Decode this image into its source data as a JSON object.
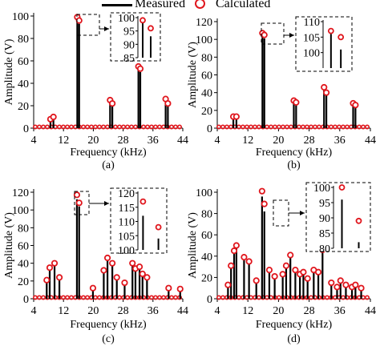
{
  "legend": {
    "measured_label": "Measured",
    "calculated_label": "Calculated"
  },
  "colors": {
    "measured": "#000000",
    "calculated": "#e0161d",
    "axis": "#000000"
  },
  "chart_data": [
    {
      "type": "line",
      "panel_label": "(a)",
      "xlabel": "Frequency (kHz)",
      "ylabel": "Amplitude (V)",
      "xlim": [
        4,
        44
      ],
      "ylim": [
        0,
        100
      ],
      "xticks": [
        4,
        12,
        20,
        28,
        36,
        44
      ],
      "yticks": [
        0,
        20,
        40,
        60,
        80,
        100
      ],
      "series": [
        {
          "name": "Measured",
          "kind": "spikes",
          "x": [
            8.5,
            9.3,
            15.7,
            16.2,
            24.5,
            25.1,
            32.1,
            32.6,
            39.4,
            40.0
          ],
          "y": [
            8,
            10,
            98,
            93,
            24,
            20,
            54,
            50,
            24,
            20
          ]
        },
        {
          "name": "Calculated",
          "kind": "markers",
          "x": [
            8.5,
            9.3,
            15.7,
            16.2,
            24.5,
            25.1,
            32.1,
            32.6,
            39.4,
            40.0
          ],
          "y": [
            8,
            10,
            99,
            96,
            25,
            22,
            55,
            53,
            26,
            22
          ]
        }
      ],
      "inset": {
        "xlim": [
          15.4,
          16.6
        ],
        "ylim": [
          85,
          100
        ],
        "yticks": [
          85,
          90,
          95,
          100
        ]
      }
    },
    {
      "type": "line",
      "panel_label": "(b)",
      "xlabel": "Frequency (kHz)",
      "ylabel": "Amplitude (V)",
      "xlim": [
        4,
        44
      ],
      "ylim": [
        0,
        120
      ],
      "xticks": [
        4,
        12,
        20,
        28,
        36,
        44
      ],
      "yticks": [
        0,
        20,
        40,
        60,
        80,
        100,
        120
      ],
      "series": [
        {
          "name": "Measured",
          "kind": "spikes",
          "x": [
            8.2,
            9.0,
            15.8,
            16.3,
            24.0,
            24.6,
            31.9,
            32.5,
            39.5,
            40.1
          ],
          "y": [
            12,
            12,
            106,
            101,
            30,
            28,
            44,
            38,
            27,
            25
          ]
        },
        {
          "name": "Calculated",
          "kind": "markers",
          "x": [
            8.2,
            9.0,
            15.8,
            16.3,
            24.0,
            24.6,
            31.9,
            32.5,
            39.5,
            40.1
          ],
          "y": [
            13,
            13,
            107,
            105,
            31,
            29,
            46,
            40,
            28,
            26
          ]
        }
      ],
      "inset": {
        "xlim": [
          15.4,
          16.7
        ],
        "ylim": [
          95,
          110
        ],
        "yticks": [
          100,
          105,
          110
        ]
      }
    },
    {
      "type": "line",
      "panel_label": "(c)",
      "xlabel": "Frequency (kHz)",
      "ylabel": "Amplitude (V)",
      "xlim": [
        4,
        44
      ],
      "ylim": [
        0,
        120
      ],
      "xticks": [
        4,
        12,
        20,
        28,
        36,
        44
      ],
      "yticks": [
        0,
        20,
        40,
        60,
        80,
        100,
        120
      ],
      "series": [
        {
          "name": "Measured",
          "kind": "spikes",
          "x": [
            7.5,
            8.3,
            9.6,
            10.9,
            15.6,
            16.2,
            19.9,
            22.8,
            23.8,
            25.1,
            26.3,
            28.4,
            30.5,
            31.3,
            32.4,
            33.2,
            34.4,
            40.2,
            43.3
          ],
          "y": [
            19,
            33,
            38,
            22,
            112,
            104,
            10,
            30,
            44,
            38,
            22,
            16,
            38,
            32,
            34,
            26,
            22,
            10,
            9
          ]
        },
        {
          "name": "Calculated",
          "kind": "markers",
          "x": [
            7.5,
            8.3,
            9.6,
            10.9,
            15.6,
            16.2,
            19.9,
            22.8,
            23.8,
            25.1,
            26.3,
            28.4,
            30.5,
            31.3,
            32.4,
            33.2,
            34.4,
            40.2,
            43.3
          ],
          "y": [
            21,
            35,
            40,
            24,
            117,
            108,
            12,
            32,
            46,
            40,
            24,
            18,
            40,
            34,
            36,
            28,
            24,
            12,
            11
          ]
        }
      ],
      "inset": {
        "xlim": [
          15.4,
          16.4
        ],
        "ylim": [
          100,
          120
        ],
        "yticks": [
          100,
          105,
          110,
          115,
          120
        ]
      }
    },
    {
      "type": "line",
      "panel_label": "(d)",
      "xlabel": "Frequency (kHz)",
      "ylabel": "Amplitude (V)",
      "xlim": [
        4,
        44
      ],
      "ylim": [
        0,
        100
      ],
      "xticks": [
        4,
        12,
        20,
        28,
        36,
        44
      ],
      "yticks": [
        0,
        20,
        40,
        60,
        80,
        100
      ],
      "series": [
        {
          "name": "Measured",
          "kind": "spikes",
          "x": [
            6.8,
            7.6,
            8.4,
            9.0,
            11.0,
            12.3,
            14.2,
            15.7,
            16.3,
            17.6,
            19.0,
            21.1,
            22.0,
            23.1,
            24.4,
            25.6,
            26.5,
            27.6,
            29.2,
            30.4,
            31.5,
            33.8,
            35.3,
            36.2,
            37.6,
            39.2,
            40.1,
            41.6
          ],
          "y": [
            12,
            30,
            44,
            49,
            38,
            34,
            16,
            96,
            82,
            26,
            20,
            22,
            30,
            40,
            26,
            22,
            24,
            18,
            26,
            24,
            44,
            14,
            10,
            16,
            12,
            10,
            12,
            9
          ]
        },
        {
          "name": "Calculated",
          "kind": "markers",
          "x": [
            6.8,
            7.6,
            8.4,
            9.0,
            11.0,
            12.3,
            14.2,
            15.7,
            16.3,
            17.6,
            19.0,
            21.1,
            22.0,
            23.1,
            24.4,
            25.6,
            26.5,
            27.6,
            29.2,
            30.4,
            31.5,
            33.8,
            35.3,
            36.2,
            37.6,
            39.2,
            40.1,
            41.6
          ],
          "y": [
            13,
            31,
            45,
            50,
            39,
            35,
            17,
            101,
            89,
            27,
            21,
            23,
            31,
            41,
            27,
            23,
            25,
            19,
            27,
            25,
            46,
            15,
            11,
            17,
            13,
            11,
            13,
            10
          ]
        }
      ],
      "inset": {
        "xlim": [
          15.4,
          16.6
        ],
        "ylim": [
          80,
          100
        ],
        "yticks": [
          80,
          85,
          90,
          95,
          100
        ]
      }
    }
  ]
}
